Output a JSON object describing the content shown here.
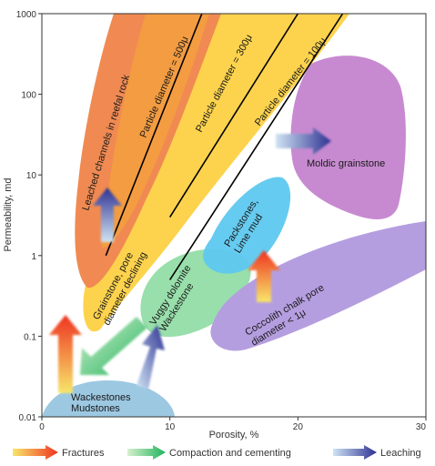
{
  "chart_data": {
    "type": "scatter",
    "xlabel": "Porosity, %",
    "ylabel": "Permeability, md",
    "xlim": [
      0,
      30
    ],
    "ylim": [
      0.01,
      1000
    ],
    "yscale": "log",
    "x_ticks": [
      0,
      10,
      20,
      30
    ],
    "y_ticks": [
      {
        "value": 0.01,
        "label": "0.01"
      },
      {
        "value": 0.1,
        "label": "0.1"
      },
      {
        "value": 1,
        "label": "1"
      },
      {
        "value": 10,
        "label": "10"
      },
      {
        "value": 100,
        "label": "100"
      },
      {
        "value": 1000,
        "label": "1000"
      }
    ],
    "grid": false,
    "fields": [
      {
        "label": "Leached channels in reefal rock",
        "color": "#f08a52",
        "center": [
          6,
          30
        ]
      },
      {
        "label": "Moldic grainstone",
        "color": "#c78ad0",
        "center": [
          26,
          15
        ]
      },
      {
        "label": "Packstones, Lime mud",
        "color": "#5ec8ef",
        "center": [
          17,
          2
        ]
      },
      {
        "label": "Grainstone, pore diameter declining",
        "color": "#fdd34e",
        "center": [
          6,
          0.3
        ]
      },
      {
        "label": "Vuggy dolomite Wackestone",
        "color": "#8fdca4",
        "center": [
          12,
          0.3
        ]
      },
      {
        "label": "Coccolith chalk pore diameter < 1μ",
        "color": "#b59ee0",
        "center": [
          24,
          0.35
        ]
      },
      {
        "label": "Wackestones Mudstones",
        "color": "#9cc8e2",
        "center": [
          6,
          0.02
        ]
      }
    ],
    "trend_lines": [
      {
        "label": "Particle diameter = 500μ",
        "points": [
          [
            5,
            1
          ],
          [
            12.5,
            1000
          ]
        ]
      },
      {
        "label": "Particle diameter = 300μ",
        "points": [
          [
            10,
            3
          ],
          [
            20,
            1000
          ]
        ]
      },
      {
        "label": "Particle diameter = 100μ",
        "points": [
          [
            10,
            0.5
          ],
          [
            23.5,
            1000
          ]
        ]
      }
    ],
    "arrows": [
      {
        "process": "Fractures",
        "from": [
          2,
          0.04
        ],
        "to": [
          2,
          0.26
        ]
      },
      {
        "process": "Fractures",
        "from": [
          17.5,
          0.36
        ],
        "to": [
          17.5,
          1.5
        ]
      },
      {
        "process": "Compaction and cementing",
        "from": [
          8,
          0.17
        ],
        "to": [
          3.3,
          0.03
        ]
      },
      {
        "process": "Leaching",
        "from": [
          7.5,
          0.016
        ],
        "to": [
          9.8,
          0.11
        ]
      },
      {
        "process": "Leaching",
        "from": [
          5,
          1.4
        ],
        "to": [
          5,
          7
        ]
      },
      {
        "process": "Leaching",
        "from": [
          19,
          24
        ],
        "to": [
          23,
          24
        ]
      }
    ],
    "legend": [
      {
        "label": "Fractures",
        "colors": [
          "#f7e66a",
          "#ef3320"
        ]
      },
      {
        "label": "Compaction and cementing",
        "colors": [
          "#d7f0cf",
          "#1fb35c"
        ]
      },
      {
        "label": "Leaching",
        "colors": [
          "#cfe4f4",
          "#2e3192"
        ]
      }
    ]
  }
}
